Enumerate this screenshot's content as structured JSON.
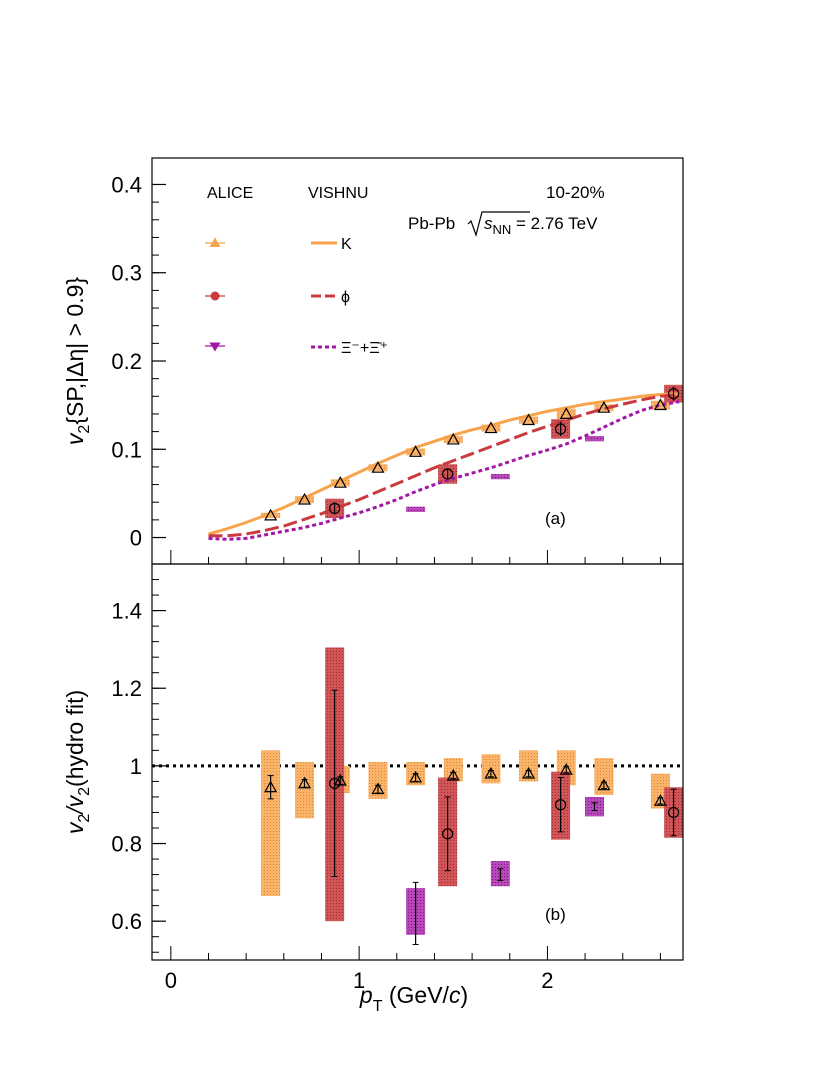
{
  "colors": {
    "kaon": "#f7a34a",
    "phi": "#c9393d",
    "xi": "#a316a6",
    "kaon_box": "#f7a34a",
    "phi_box": "#c33a3e",
    "xi_box": "#a32aa8"
  },
  "chart_data": [
    {
      "type": "scatter",
      "panel": "a",
      "ylabel_main": "v",
      "ylabel_sub": "2",
      "ylabel_rest": "{SP,|Δη| > 0.9}",
      "xlim": [
        -0.1,
        2.72
      ],
      "ylim": [
        -0.03,
        0.43
      ],
      "yticks": [
        0,
        0.1,
        0.2,
        0.3,
        0.4
      ],
      "ytick_labels": [
        "0",
        "0.1",
        "0.2",
        "0.3",
        "0.4"
      ],
      "annotations": {
        "centrality": "10-20%",
        "system": "Pb-Pb",
        "energy_sqrt": "s",
        "energy_sub": "NN",
        "energy_value": " = 2.76 TeV",
        "panel_label": "(a)"
      },
      "legend": {
        "header_data": "ALICE",
        "header_model": "VISHNU",
        "entries": [
          {
            "species": "kaon",
            "model_label": "K",
            "style": "solid"
          },
          {
            "species": "phi",
            "model_label": "ϕ",
            "style": "dashed"
          },
          {
            "species": "xi",
            "model_label": "Ξ⁻+Ξ̄⁺",
            "style": "dotted"
          }
        ]
      },
      "series": [
        {
          "species": "kaon",
          "x": [
            0.53,
            0.71,
            0.9,
            1.1,
            1.3,
            1.5,
            1.7,
            1.9,
            2.1,
            2.3,
            2.6
          ],
          "y": [
            0.025,
            0.043,
            0.062,
            0.079,
            0.097,
            0.111,
            0.124,
            0.133,
            0.14,
            0.147,
            0.15
          ],
          "syst": [
            0.003,
            0.004,
            0.004,
            0.004,
            0.004,
            0.004,
            0.004,
            0.004,
            0.006,
            0.004,
            0.005
          ]
        },
        {
          "species": "phi",
          "x": [
            0.87,
            1.47,
            2.07,
            2.67
          ],
          "y": [
            0.033,
            0.072,
            0.123,
            0.163
          ],
          "syst": [
            0.011,
            0.011,
            0.011,
            0.01
          ],
          "stat": [
            0.007,
            0.006,
            0.008,
            0.008
          ]
        },
        {
          "species": "xi",
          "x": [
            1.3,
            1.75,
            2.25
          ],
          "y": [
            0.032,
            0.069,
            0.112
          ],
          "syst": [
            0.003,
            0.003,
            0.003
          ]
        }
      ],
      "model": [
        {
          "species": "kaon",
          "x": [
            0.2,
            0.3,
            0.4,
            0.5,
            0.6,
            0.7,
            0.8,
            0.9,
            1.0,
            1.1,
            1.2,
            1.3,
            1.4,
            1.5,
            1.6,
            1.7,
            1.8,
            1.9,
            2.0,
            2.1,
            2.2,
            2.3,
            2.4,
            2.5,
            2.6,
            2.7
          ],
          "y": [
            0.004,
            0.01,
            0.017,
            0.025,
            0.034,
            0.044,
            0.054,
            0.064,
            0.074,
            0.084,
            0.093,
            0.102,
            0.109,
            0.116,
            0.122,
            0.127,
            0.133,
            0.138,
            0.143,
            0.147,
            0.151,
            0.154,
            0.157,
            0.16,
            0.162,
            0.163
          ]
        },
        {
          "species": "phi",
          "x": [
            0.2,
            0.3,
            0.4,
            0.5,
            0.6,
            0.7,
            0.8,
            0.9,
            1.0,
            1.1,
            1.2,
            1.3,
            1.4,
            1.5,
            1.6,
            1.7,
            1.8,
            1.9,
            2.0,
            2.1,
            2.2,
            2.3,
            2.4,
            2.5,
            2.6,
            2.7
          ],
          "y": [
            0.002,
            0.002,
            0.004,
            0.008,
            0.013,
            0.02,
            0.027,
            0.035,
            0.043,
            0.052,
            0.061,
            0.07,
            0.079,
            0.087,
            0.095,
            0.103,
            0.111,
            0.119,
            0.126,
            0.133,
            0.14,
            0.146,
            0.151,
            0.156,
            0.16,
            0.162
          ]
        },
        {
          "species": "xi",
          "x": [
            0.2,
            0.3,
            0.4,
            0.5,
            0.6,
            0.7,
            0.8,
            0.9,
            1.0,
            1.1,
            1.2,
            1.3,
            1.4,
            1.5,
            1.6,
            1.7,
            1.8,
            1.9,
            2.0,
            2.1,
            2.2,
            2.3,
            2.4,
            2.5,
            2.6,
            2.7
          ],
          "y": [
            -0.001,
            -0.002,
            -0.001,
            0.003,
            0.007,
            0.011,
            0.016,
            0.022,
            0.028,
            0.035,
            0.043,
            0.052,
            0.06,
            0.067,
            0.073,
            0.079,
            0.086,
            0.093,
            0.099,
            0.106,
            0.115,
            0.125,
            0.135,
            0.144,
            0.15,
            0.154
          ]
        }
      ]
    },
    {
      "type": "scatter",
      "panel": "b",
      "ylabel_main": "v",
      "ylabel_sub": "2",
      "ylabel_mid": "/v",
      "ylabel_sub2": "2",
      "ylabel_rest": "(hydro fit)",
      "xlabel_main": "p",
      "xlabel_sub": "T",
      "xlabel_rest": " (GeV/",
      "xlabel_c": "c",
      "xlabel_end": ")",
      "xlim": [
        -0.1,
        2.72
      ],
      "ylim": [
        0.5,
        1.52
      ],
      "xticks": [
        0,
        1,
        2
      ],
      "xtick_labels": [
        "0",
        "1",
        "2"
      ],
      "yticks": [
        0.6,
        0.8,
        1.0,
        1.2,
        1.4
      ],
      "ytick_labels": [
        "0.6",
        "0.8",
        "1",
        "1.2",
        "1.4"
      ],
      "reference_line": 1.0,
      "annotations": {
        "panel_label": "(b)"
      },
      "series": [
        {
          "species": "kaon",
          "x": [
            0.53,
            0.71,
            0.9,
            1.1,
            1.3,
            1.5,
            1.7,
            1.9,
            2.1,
            2.3,
            2.6
          ],
          "y": [
            0.945,
            0.955,
            0.962,
            0.94,
            0.97,
            0.975,
            0.98,
            0.98,
            0.99,
            0.95,
            0.91
          ],
          "box_low": [
            0.665,
            0.865,
            0.93,
            0.915,
            0.95,
            0.96,
            0.955,
            0.96,
            0.95,
            0.925,
            0.89
          ],
          "box_high": [
            1.04,
            1.01,
            1.0,
            1.01,
            1.01,
            1.02,
            1.03,
            1.04,
            1.04,
            1.02,
            0.98
          ],
          "stat": [
            0.03,
            0.01,
            0.01,
            0.01,
            0.01,
            0.008,
            0.008,
            0.008,
            0.008,
            0.008,
            0.008
          ]
        },
        {
          "species": "phi",
          "x": [
            0.87,
            1.47,
            2.07,
            2.67
          ],
          "y": [
            0.955,
            0.825,
            0.9,
            0.88
          ],
          "box_low": [
            0.6,
            0.69,
            0.81,
            0.815
          ],
          "box_high": [
            1.305,
            0.97,
            0.985,
            0.945
          ],
          "stat": [
            0.24,
            0.095,
            0.07,
            0.06
          ]
        },
        {
          "species": "xi",
          "x": [
            1.3,
            1.75,
            2.25
          ],
          "y": [
            0.62,
            0.72,
            0.895
          ],
          "box_low": [
            0.565,
            0.69,
            0.87
          ],
          "box_high": [
            0.685,
            0.755,
            0.92
          ],
          "stat": [
            0.08,
            0.015,
            0.01
          ]
        }
      ]
    }
  ]
}
